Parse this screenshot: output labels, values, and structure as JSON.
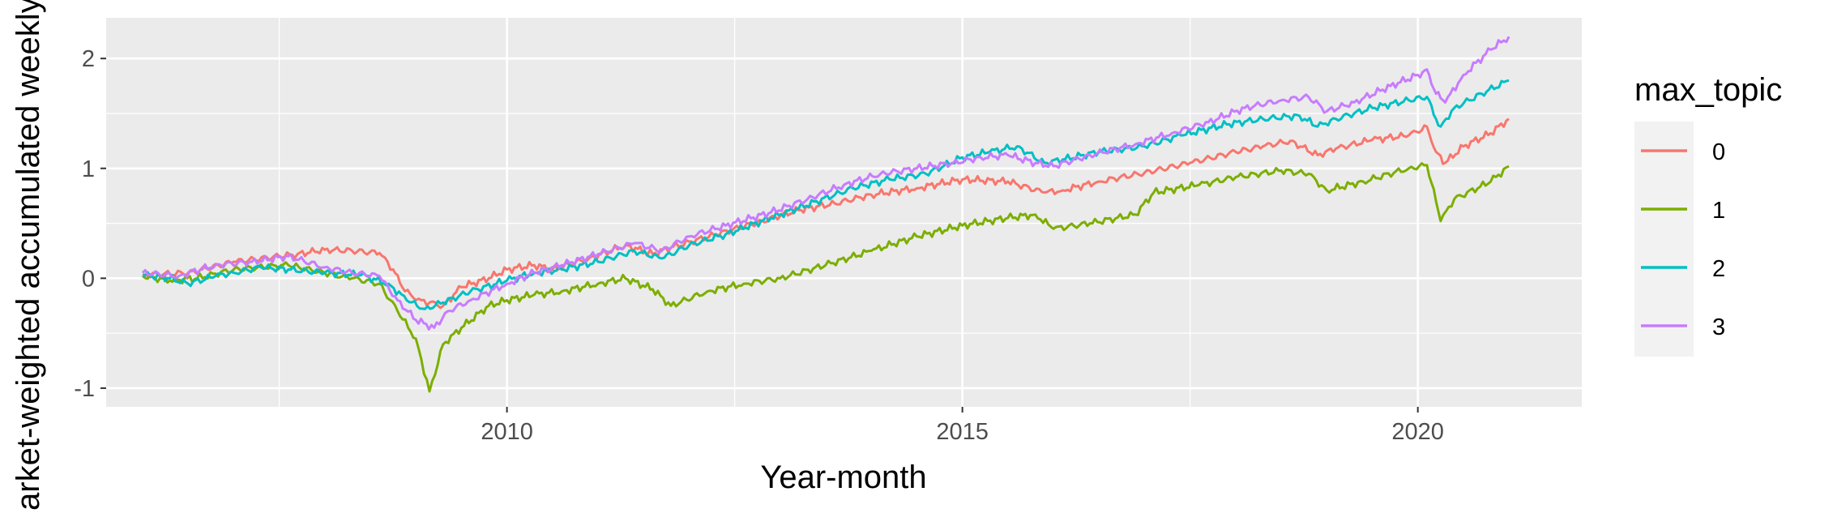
{
  "chart_data": {
    "type": "line",
    "title": "",
    "xlabel": "Year-month",
    "ylabel": "Market-weighted accumulated weekly returns",
    "xlim": [
      2005.6,
      2021.8
    ],
    "ylim": [
      -1.17,
      2.37
    ],
    "x_ticks": [
      2010,
      2015,
      2020
    ],
    "x_tick_labels": [
      "2010",
      "2015",
      "2020"
    ],
    "y_ticks": [
      -1,
      0,
      1,
      2
    ],
    "y_tick_labels": [
      "-1",
      "0",
      "1",
      "2"
    ],
    "grid": true,
    "legend": {
      "title": "max_topic",
      "position": "right"
    },
    "series": [
      {
        "name": "0",
        "color": "#F8766D",
        "points": [
          [
            2006.0,
            0.03
          ],
          [
            2006.5,
            0.05
          ],
          [
            2007.0,
            0.15
          ],
          [
            2007.5,
            0.2
          ],
          [
            2007.7,
            0.22
          ],
          [
            2008.0,
            0.26
          ],
          [
            2008.3,
            0.25
          ],
          [
            2008.6,
            0.23
          ],
          [
            2008.75,
            0.08
          ],
          [
            2008.85,
            -0.08
          ],
          [
            2009.0,
            -0.2
          ],
          [
            2009.15,
            -0.22
          ],
          [
            2009.3,
            -0.25
          ],
          [
            2009.5,
            -0.08
          ],
          [
            2009.8,
            0.0
          ],
          [
            2010.0,
            0.08
          ],
          [
            2010.3,
            0.12
          ],
          [
            2010.5,
            0.08
          ],
          [
            2010.9,
            0.18
          ],
          [
            2011.3,
            0.3
          ],
          [
            2011.6,
            0.22
          ],
          [
            2011.8,
            0.28
          ],
          [
            2012.3,
            0.4
          ],
          [
            2012.8,
            0.52
          ],
          [
            2013.2,
            0.62
          ],
          [
            2013.6,
            0.68
          ],
          [
            2014.0,
            0.76
          ],
          [
            2014.5,
            0.82
          ],
          [
            2015.0,
            0.9
          ],
          [
            2015.5,
            0.88
          ],
          [
            2015.9,
            0.78
          ],
          [
            2016.1,
            0.8
          ],
          [
            2016.5,
            0.88
          ],
          [
            2017.0,
            0.96
          ],
          [
            2017.5,
            1.05
          ],
          [
            2018.0,
            1.15
          ],
          [
            2018.3,
            1.2
          ],
          [
            2018.6,
            1.25
          ],
          [
            2018.9,
            1.12
          ],
          [
            2019.1,
            1.18
          ],
          [
            2019.5,
            1.26
          ],
          [
            2019.9,
            1.3
          ],
          [
            2020.1,
            1.38
          ],
          [
            2020.2,
            1.15
          ],
          [
            2020.3,
            1.05
          ],
          [
            2020.5,
            1.2
          ],
          [
            2020.8,
            1.32
          ],
          [
            2021.0,
            1.45
          ]
        ]
      },
      {
        "name": "1",
        "color": "#7CAE00",
        "points": [
          [
            2006.0,
            0.02
          ],
          [
            2006.3,
            -0.02
          ],
          [
            2006.6,
            0.0
          ],
          [
            2007.0,
            0.08
          ],
          [
            2007.6,
            0.12
          ],
          [
            2008.0,
            0.05
          ],
          [
            2008.3,
            0.0
          ],
          [
            2008.6,
            -0.05
          ],
          [
            2008.8,
            -0.3
          ],
          [
            2009.0,
            -0.55
          ],
          [
            2009.15,
            -1.03
          ],
          [
            2009.3,
            -0.6
          ],
          [
            2009.5,
            -0.45
          ],
          [
            2009.8,
            -0.25
          ],
          [
            2010.0,
            -0.2
          ],
          [
            2010.3,
            -0.15
          ],
          [
            2010.6,
            -0.12
          ],
          [
            2011.0,
            -0.05
          ],
          [
            2011.3,
            0.0
          ],
          [
            2011.6,
            -0.1
          ],
          [
            2011.8,
            -0.25
          ],
          [
            2012.2,
            -0.12
          ],
          [
            2012.6,
            -0.05
          ],
          [
            2013.0,
            0.0
          ],
          [
            2013.5,
            0.12
          ],
          [
            2014.0,
            0.25
          ],
          [
            2014.5,
            0.38
          ],
          [
            2015.0,
            0.48
          ],
          [
            2015.5,
            0.55
          ],
          [
            2015.8,
            0.58
          ],
          [
            2016.0,
            0.45
          ],
          [
            2016.4,
            0.5
          ],
          [
            2016.9,
            0.58
          ],
          [
            2017.1,
            0.78
          ],
          [
            2017.6,
            0.85
          ],
          [
            2018.0,
            0.92
          ],
          [
            2018.5,
            0.98
          ],
          [
            2018.8,
            0.95
          ],
          [
            2019.0,
            0.8
          ],
          [
            2019.4,
            0.88
          ],
          [
            2019.9,
            1.0
          ],
          [
            2020.1,
            1.03
          ],
          [
            2020.2,
            0.7
          ],
          [
            2020.25,
            0.52
          ],
          [
            2020.4,
            0.72
          ],
          [
            2020.8,
            0.88
          ],
          [
            2021.0,
            1.02
          ]
        ]
      },
      {
        "name": "2",
        "color": "#00BFC4",
        "points": [
          [
            2006.0,
            0.03
          ],
          [
            2006.3,
            0.0
          ],
          [
            2006.5,
            -0.05
          ],
          [
            2006.8,
            0.02
          ],
          [
            2007.0,
            0.05
          ],
          [
            2007.3,
            0.1
          ],
          [
            2007.6,
            0.08
          ],
          [
            2008.0,
            0.05
          ],
          [
            2008.4,
            0.03
          ],
          [
            2008.7,
            -0.05
          ],
          [
            2008.9,
            -0.2
          ],
          [
            2009.1,
            -0.28
          ],
          [
            2009.3,
            -0.22
          ],
          [
            2009.6,
            -0.12
          ],
          [
            2010.0,
            -0.02
          ],
          [
            2010.3,
            0.05
          ],
          [
            2010.6,
            0.08
          ],
          [
            2011.0,
            0.15
          ],
          [
            2011.4,
            0.25
          ],
          [
            2011.7,
            0.18
          ],
          [
            2012.0,
            0.3
          ],
          [
            2012.4,
            0.4
          ],
          [
            2012.9,
            0.55
          ],
          [
            2013.4,
            0.7
          ],
          [
            2013.8,
            0.82
          ],
          [
            2014.2,
            0.9
          ],
          [
            2014.6,
            0.95
          ],
          [
            2015.0,
            1.1
          ],
          [
            2015.3,
            1.15
          ],
          [
            2015.6,
            1.2
          ],
          [
            2015.9,
            1.05
          ],
          [
            2016.1,
            1.08
          ],
          [
            2016.5,
            1.15
          ],
          [
            2017.0,
            1.2
          ],
          [
            2017.4,
            1.3
          ],
          [
            2017.9,
            1.4
          ],
          [
            2018.3,
            1.45
          ],
          [
            2018.7,
            1.48
          ],
          [
            2018.9,
            1.38
          ],
          [
            2019.1,
            1.45
          ],
          [
            2019.5,
            1.55
          ],
          [
            2019.9,
            1.62
          ],
          [
            2020.1,
            1.65
          ],
          [
            2020.2,
            1.45
          ],
          [
            2020.25,
            1.38
          ],
          [
            2020.4,
            1.55
          ],
          [
            2020.7,
            1.68
          ],
          [
            2021.0,
            1.8
          ]
        ]
      },
      {
        "name": "3",
        "color": "#C77CFF",
        "points": [
          [
            2006.0,
            0.05
          ],
          [
            2006.4,
            0.02
          ],
          [
            2006.8,
            0.12
          ],
          [
            2007.2,
            0.15
          ],
          [
            2007.6,
            0.2
          ],
          [
            2008.0,
            0.1
          ],
          [
            2008.3,
            0.05
          ],
          [
            2008.6,
            0.02
          ],
          [
            2008.8,
            -0.2
          ],
          [
            2009.0,
            -0.38
          ],
          [
            2009.2,
            -0.45
          ],
          [
            2009.35,
            -0.3
          ],
          [
            2009.6,
            -0.2
          ],
          [
            2010.0,
            -0.05
          ],
          [
            2010.3,
            0.05
          ],
          [
            2010.6,
            0.12
          ],
          [
            2011.0,
            0.22
          ],
          [
            2011.4,
            0.32
          ],
          [
            2011.7,
            0.25
          ],
          [
            2012.0,
            0.38
          ],
          [
            2012.4,
            0.48
          ],
          [
            2012.9,
            0.6
          ],
          [
            2013.3,
            0.72
          ],
          [
            2013.7,
            0.85
          ],
          [
            2014.1,
            0.95
          ],
          [
            2014.5,
            1.0
          ],
          [
            2014.9,
            1.05
          ],
          [
            2015.2,
            1.1
          ],
          [
            2015.5,
            1.12
          ],
          [
            2015.8,
            1.05
          ],
          [
            2016.0,
            1.02
          ],
          [
            2016.4,
            1.12
          ],
          [
            2016.9,
            1.22
          ],
          [
            2017.3,
            1.32
          ],
          [
            2017.7,
            1.42
          ],
          [
            2018.1,
            1.55
          ],
          [
            2018.5,
            1.62
          ],
          [
            2018.8,
            1.65
          ],
          [
            2019.0,
            1.52
          ],
          [
            2019.3,
            1.6
          ],
          [
            2019.7,
            1.75
          ],
          [
            2020.0,
            1.85
          ],
          [
            2020.1,
            1.9
          ],
          [
            2020.2,
            1.68
          ],
          [
            2020.3,
            1.6
          ],
          [
            2020.5,
            1.85
          ],
          [
            2020.8,
            2.08
          ],
          [
            2021.0,
            2.2
          ]
        ]
      }
    ]
  }
}
